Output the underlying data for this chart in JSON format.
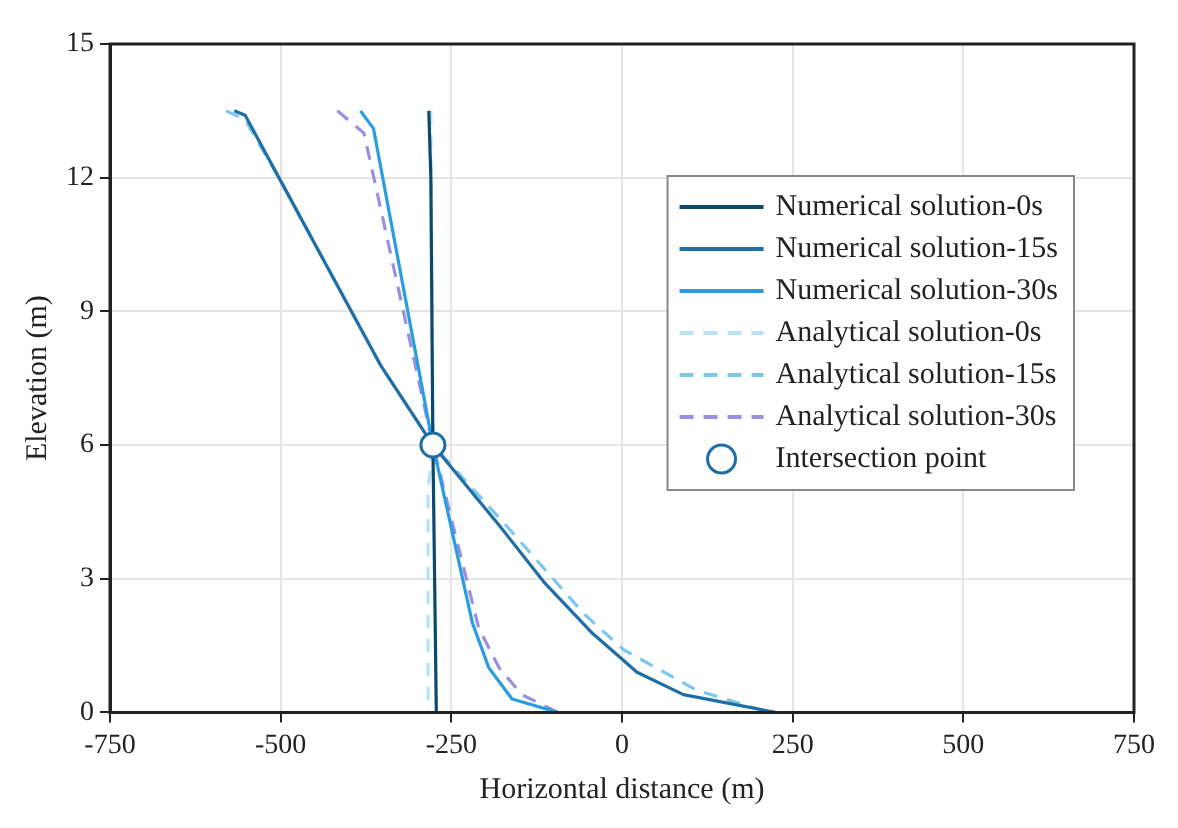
{
  "chart_data": {
    "type": "line",
    "xlabel": "Horizontal distance (m)",
    "ylabel": "Elevation (m)",
    "xlim": [
      -750,
      750
    ],
    "xticks": [
      -750,
      -500,
      -250,
      0,
      250,
      500,
      750
    ],
    "ylim": [
      0,
      15
    ],
    "yticks": [
      0,
      3,
      6,
      9,
      12,
      15
    ],
    "grid": true,
    "legend": "top right",
    "marker": "none",
    "series": [
      {
        "name": "Numerical solution-0s",
        "color": "#0b4a6e",
        "line_style": "solid",
        "x": [
          -283,
          -280,
          -277,
          -272
        ],
        "values": [
          13.5,
          12,
          6,
          0
        ]
      },
      {
        "name": "Numerical solution-15s",
        "color": "#1f6fa6",
        "line_style": "solid",
        "x": [
          -568,
          -552,
          -499,
          -354,
          -277,
          -180,
          -113,
          -45,
          22,
          90,
          225
        ],
        "values": [
          13.5,
          13.4,
          11.9,
          7.8,
          6,
          4.2,
          2.9,
          1.8,
          0.9,
          0.4,
          0
        ]
      },
      {
        "name": "Numerical solution-30s",
        "color": "#2a9de0",
        "line_style": "solid",
        "x": [
          -383,
          -364,
          -277,
          -219,
          -195,
          -161,
          -94
        ],
        "values": [
          13.5,
          13.1,
          6,
          2,
          1,
          0.3,
          0
        ]
      },
      {
        "name": "Analytical solution-0s",
        "color": "#b9e3f5",
        "line_style": "dashed",
        "x": [
          -280,
          -277,
          -284,
          -284
        ],
        "values": [
          13.5,
          6,
          5,
          0
        ]
      },
      {
        "name": "Analytical solution-15s",
        "color": "#7cc8ec",
        "line_style": "dashed",
        "x": [
          -580,
          -552,
          -499,
          -354,
          -277,
          -170,
          -55,
          3,
          109,
          215
        ],
        "values": [
          13.5,
          13.3,
          11.9,
          7.8,
          6,
          4.2,
          2.2,
          1.4,
          0.5,
          0
        ]
      },
      {
        "name": "Analytical solution-30s",
        "color": "#9b90e0",
        "line_style": "dashed",
        "x": [
          -417,
          -378,
          -277,
          -210,
          -180,
          -147,
          -94
        ],
        "values": [
          13.5,
          13,
          6,
          1.9,
          1,
          0.4,
          0
        ]
      },
      {
        "name": "Intersection point",
        "type": "scatter",
        "marker": "circle",
        "color": "#1f6fa6",
        "x": [
          -277
        ],
        "values": [
          6
        ]
      }
    ]
  }
}
